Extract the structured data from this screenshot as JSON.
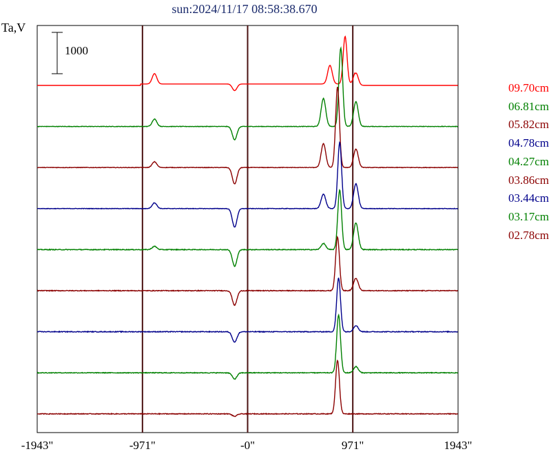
{
  "title": "sun:2024/11/17 08:58:38.670",
  "ylabel": "Ta,V",
  "scale_bar_label": "1000",
  "x_tick_labels": [
    "-1943\"",
    "-971\"",
    "-0\"",
    "971\"",
    "1943\""
  ],
  "chart_data": {
    "type": "line",
    "title": "sun:2024/11/17 08:58:38.670",
    "xlabel": "",
    "ylabel": "Ta,V",
    "x_ticks": [
      -1943,
      -971,
      0,
      971,
      1943
    ],
    "x_tick_labels": [
      "-1943\"",
      "-971\"",
      "-0\"",
      "971\"",
      "1943\""
    ],
    "xlim": [
      -1943,
      1943
    ],
    "vertical_lines": [
      -971,
      0,
      971
    ],
    "scale_bar": 1000,
    "legend_placement": "right",
    "grid": false,
    "series": [
      {
        "name": "09.70cm",
        "color": "#ff0000",
        "peaks": [
          {
            "x": 900,
            "y": 1150
          },
          {
            "x": 760,
            "y": 450
          },
          {
            "x": 1000,
            "y": 300
          },
          {
            "x": -860,
            "y": 250
          },
          {
            "x": -120,
            "y": -160
          }
        ]
      },
      {
        "name": "06.81cm",
        "color": "#008000",
        "peaks": [
          {
            "x": 860,
            "y": 1900
          },
          {
            "x": 700,
            "y": 680
          },
          {
            "x": 1000,
            "y": 600
          },
          {
            "x": -860,
            "y": 180
          },
          {
            "x": -120,
            "y": -320
          }
        ]
      },
      {
        "name": "05.82cm",
        "color": "#8b0000",
        "peaks": [
          {
            "x": 830,
            "y": 1950
          },
          {
            "x": 700,
            "y": 580
          },
          {
            "x": 1000,
            "y": 450
          },
          {
            "x": -860,
            "y": 140
          },
          {
            "x": -120,
            "y": -400
          }
        ]
      },
      {
        "name": "04.78cm",
        "color": "#00008b",
        "peaks": [
          {
            "x": 850,
            "y": 1600
          },
          {
            "x": 700,
            "y": 350
          },
          {
            "x": 1000,
            "y": 600
          },
          {
            "x": -860,
            "y": 140
          },
          {
            "x": -120,
            "y": -450
          }
        ]
      },
      {
        "name": "04.27cm",
        "color": "#008000",
        "peaks": [
          {
            "x": 850,
            "y": 1450
          },
          {
            "x": 700,
            "y": 150
          },
          {
            "x": 1000,
            "y": 650
          },
          {
            "x": -860,
            "y": 80
          },
          {
            "x": -120,
            "y": -400
          }
        ]
      },
      {
        "name": "03.86cm",
        "color": "#8b0000",
        "peaks": [
          {
            "x": 830,
            "y": 1300
          },
          {
            "x": 1000,
            "y": 300
          },
          {
            "x": -120,
            "y": -350
          }
        ]
      },
      {
        "name": "03.44cm",
        "color": "#00008b",
        "peaks": [
          {
            "x": 840,
            "y": 1300
          },
          {
            "x": 1000,
            "y": 150
          },
          {
            "x": -120,
            "y": -250
          }
        ]
      },
      {
        "name": "03.17cm",
        "color": "#008000",
        "peaks": [
          {
            "x": 840,
            "y": 1400
          },
          {
            "x": 1000,
            "y": 150
          },
          {
            "x": -120,
            "y": -150
          }
        ]
      },
      {
        "name": "02.78cm",
        "color": "#8b0000",
        "peaks": [
          {
            "x": 830,
            "y": 1300
          },
          {
            "x": -120,
            "y": -60
          }
        ]
      }
    ]
  }
}
